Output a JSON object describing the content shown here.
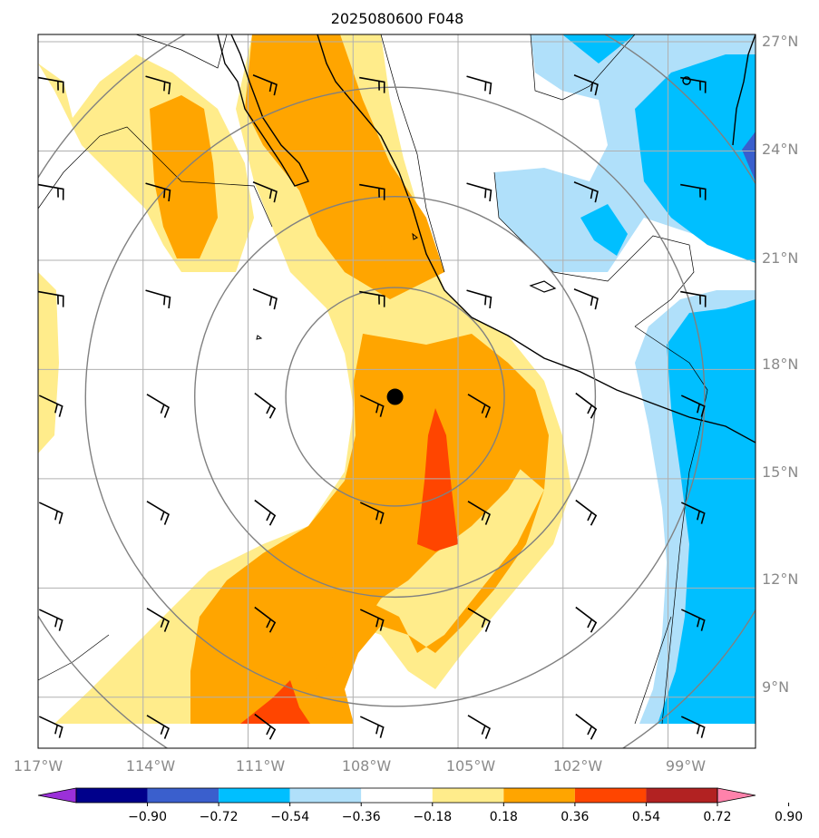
{
  "title": "2025080600 F048",
  "map": {
    "lon_range": [
      -117.0,
      -96.5
    ],
    "lat_range": [
      7.6,
      27.2
    ],
    "grid_lons": [
      -114,
      -111,
      -108,
      -105,
      -102,
      -99
    ],
    "grid_lats": [
      9,
      12,
      15,
      18,
      21,
      24,
      27
    ],
    "lon_labels": [
      "117°W",
      "114°W",
      "111°W",
      "108°W",
      "105°W",
      "102°W",
      "99°W"
    ],
    "lat_labels": [
      "27°N",
      "24°N",
      "21°N",
      "18°N",
      "15°N",
      "12°N",
      "9°N"
    ],
    "storm_center": {
      "lon": -106.8,
      "lat": 17.25
    },
    "range_rings_deg": [
      3,
      5.5,
      8.5,
      11.5
    ]
  },
  "colorbar": {
    "ticks": [
      "−0.90",
      "−0.72",
      "−0.54",
      "−0.36",
      "−0.18",
      "0.18",
      "0.36",
      "0.54",
      "0.72",
      "0.90"
    ],
    "colors": [
      "#9b30d9",
      "#00008b",
      "#3a5fcd",
      "#00bfff",
      "#b0e0fa",
      "#ffffff",
      "#ffec8b",
      "#ffa500",
      "#ff4500",
      "#b22222",
      "#ff82ab"
    ]
  },
  "colors": {
    "grid": "#b0b0b0",
    "coast": "#000000",
    "rings": "#808080",
    "barbs": "#000000"
  }
}
